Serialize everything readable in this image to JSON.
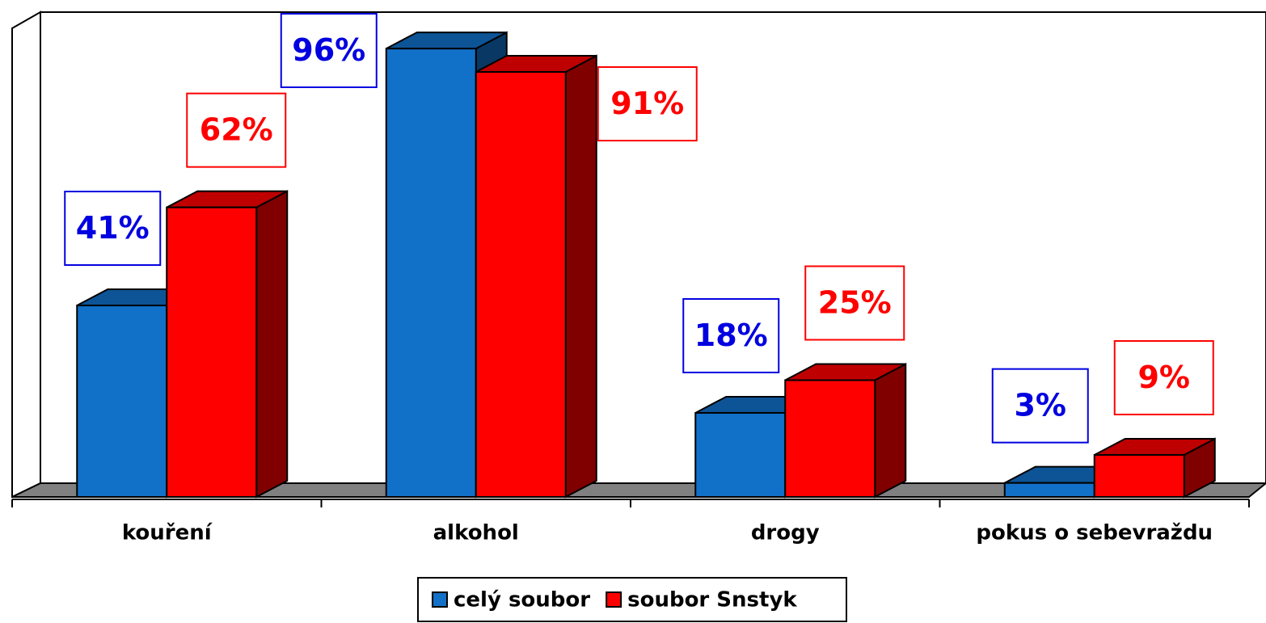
{
  "chart_data": {
    "type": "bar3d",
    "categories": [
      "kouření",
      "alkohol",
      "drogy",
      "pokus o sebevraždu"
    ],
    "series": [
      {
        "name": "celý soubor",
        "color": "#1170c8",
        "values": [
          41,
          96,
          18,
          3
        ],
        "value_labels": [
          "41%",
          "96%",
          "18%",
          "3%"
        ]
      },
      {
        "name": "soubor Snstyk",
        "color": "#ff0000",
        "values": [
          62,
          91,
          25,
          9
        ],
        "value_labels": [
          "62%",
          "91%",
          "25%",
          "9%"
        ]
      }
    ],
    "ylim": [
      0,
      100
    ]
  }
}
